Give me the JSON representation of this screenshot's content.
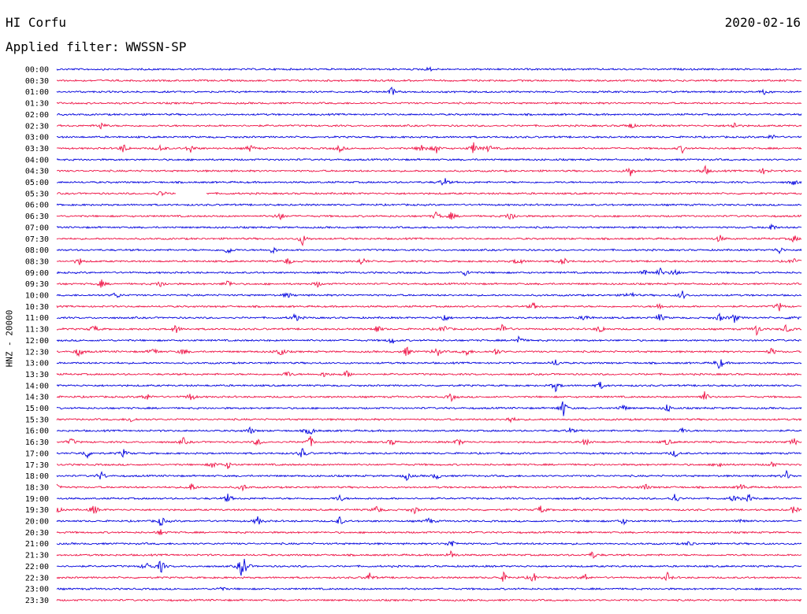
{
  "header": {
    "station": "HI Corfu",
    "date": "2020-02-16",
    "filter_label": "Applied filter:",
    "filter_value": "WWSSN-SP"
  },
  "axis": {
    "ylabel": "HNZ - 20000"
  },
  "colors": {
    "even_row": "#0000dd",
    "odd_row": "#ee1144",
    "label": "#000000"
  },
  "chart_data": {
    "type": "line",
    "title": "",
    "xlabel": "",
    "ylabel": "HNZ - 20000",
    "row_interval_minutes": 30,
    "row_labels": [
      "00:00",
      "00:30",
      "01:00",
      "01:30",
      "02:00",
      "02:30",
      "03:00",
      "03:30",
      "04:00",
      "04:30",
      "05:00",
      "05:30",
      "06:00",
      "06:30",
      "07:00",
      "07:30",
      "08:00",
      "08:30",
      "09:00",
      "09:30",
      "10:00",
      "10:30",
      "11:00",
      "11:30",
      "12:00",
      "12:30",
      "13:00",
      "13:30",
      "14:00",
      "14:30",
      "15:00",
      "15:30",
      "16:00",
      "16:30",
      "17:00",
      "17:30",
      "18:00",
      "18:30",
      "19:00",
      "19:30",
      "20:00",
      "20:30",
      "21:00",
      "21:30",
      "22:00",
      "22:30",
      "23:00",
      "23:30"
    ],
    "row_colors": [
      "blue",
      "red"
    ],
    "events": [
      {
        "row": "00:00",
        "t": 0.5,
        "amp": 3
      },
      {
        "row": "01:00",
        "t": 0.45,
        "amp": 6
      },
      {
        "row": "01:00",
        "t": 0.95,
        "amp": 3
      },
      {
        "row": "02:30",
        "t": 0.06,
        "amp": 5
      },
      {
        "row": "02:30",
        "t": 0.77,
        "amp": 5
      },
      {
        "row": "02:30",
        "t": 0.91,
        "amp": 5
      },
      {
        "row": "03:00",
        "t": 0.96,
        "amp": 4
      },
      {
        "row": "03:30",
        "t": 0.09,
        "amp": 6
      },
      {
        "row": "03:30",
        "t": 0.14,
        "amp": 5
      },
      {
        "row": "03:30",
        "t": 0.18,
        "amp": 6
      },
      {
        "row": "03:30",
        "t": 0.26,
        "amp": 5
      },
      {
        "row": "03:30",
        "t": 0.38,
        "amp": 5
      },
      {
        "row": "03:30",
        "t": 0.49,
        "amp": 7
      },
      {
        "row": "03:30",
        "t": 0.51,
        "amp": 6
      },
      {
        "row": "03:30",
        "t": 0.56,
        "amp": 8
      },
      {
        "row": "03:30",
        "t": 0.58,
        "amp": 5
      },
      {
        "row": "03:30",
        "t": 0.84,
        "amp": 5
      },
      {
        "row": "04:30",
        "t": 0.77,
        "amp": 8
      },
      {
        "row": "04:30",
        "t": 0.87,
        "amp": 7
      },
      {
        "row": "04:30",
        "t": 0.95,
        "amp": 5
      },
      {
        "row": "05:00",
        "t": 0.52,
        "amp": 7
      },
      {
        "row": "05:00",
        "t": 0.99,
        "amp": 4
      },
      {
        "row": "05:30",
        "t": 0.14,
        "amp": 4
      },
      {
        "row": "06:30",
        "t": 0.3,
        "amp": 6
      },
      {
        "row": "06:30",
        "t": 0.51,
        "amp": 6
      },
      {
        "row": "06:30",
        "t": 0.53,
        "amp": 5
      },
      {
        "row": "06:30",
        "t": 0.61,
        "amp": 8
      },
      {
        "row": "07:00",
        "t": 0.96,
        "amp": 5
      },
      {
        "row": "07:30",
        "t": 0.33,
        "amp": 8
      },
      {
        "row": "07:30",
        "t": 0.89,
        "amp": 5
      },
      {
        "row": "07:30",
        "t": 0.99,
        "amp": 5
      },
      {
        "row": "08:00",
        "t": 0.23,
        "amp": 6
      },
      {
        "row": "08:00",
        "t": 0.29,
        "amp": 5
      },
      {
        "row": "08:00",
        "t": 0.97,
        "amp": 5
      },
      {
        "row": "08:30",
        "t": 0.03,
        "amp": 5
      },
      {
        "row": "08:30",
        "t": 0.31,
        "amp": 5
      },
      {
        "row": "08:30",
        "t": 0.41,
        "amp": 6
      },
      {
        "row": "08:30",
        "t": 0.62,
        "amp": 6
      },
      {
        "row": "08:30",
        "t": 0.68,
        "amp": 6
      },
      {
        "row": "08:30",
        "t": 0.99,
        "amp": 5
      },
      {
        "row": "09:00",
        "t": 0.55,
        "amp": 5
      },
      {
        "row": "09:00",
        "t": 0.79,
        "amp": 6
      },
      {
        "row": "09:00",
        "t": 0.81,
        "amp": 6
      },
      {
        "row": "09:00",
        "t": 0.83,
        "amp": 6
      },
      {
        "row": "09:30",
        "t": 0.06,
        "amp": 5
      },
      {
        "row": "09:30",
        "t": 0.14,
        "amp": 5
      },
      {
        "row": "09:30",
        "t": 0.23,
        "amp": 6
      },
      {
        "row": "09:30",
        "t": 0.35,
        "amp": 4
      },
      {
        "row": "10:00",
        "t": 0.08,
        "amp": 5
      },
      {
        "row": "10:00",
        "t": 0.31,
        "amp": 4
      },
      {
        "row": "10:00",
        "t": 0.77,
        "amp": 6
      },
      {
        "row": "10:00",
        "t": 0.84,
        "amp": 6
      },
      {
        "row": "10:30",
        "t": 0.64,
        "amp": 5
      },
      {
        "row": "10:30",
        "t": 0.81,
        "amp": 5
      },
      {
        "row": "10:30",
        "t": 0.97,
        "amp": 6
      },
      {
        "row": "11:00",
        "t": 0.32,
        "amp": 6
      },
      {
        "row": "11:00",
        "t": 0.52,
        "amp": 6
      },
      {
        "row": "11:00",
        "t": 0.71,
        "amp": 5
      },
      {
        "row": "11:00",
        "t": 0.81,
        "amp": 6
      },
      {
        "row": "11:00",
        "t": 0.89,
        "amp": 5
      },
      {
        "row": "11:00",
        "t": 0.91,
        "amp": 6
      },
      {
        "row": "11:00",
        "t": 0.99,
        "amp": 5
      },
      {
        "row": "11:30",
        "t": 0.05,
        "amp": 6
      },
      {
        "row": "11:30",
        "t": 0.16,
        "amp": 6
      },
      {
        "row": "11:30",
        "t": 0.43,
        "amp": 6
      },
      {
        "row": "11:30",
        "t": 0.52,
        "amp": 7
      },
      {
        "row": "11:30",
        "t": 0.6,
        "amp": 9
      },
      {
        "row": "11:30",
        "t": 0.73,
        "amp": 6
      },
      {
        "row": "11:30",
        "t": 0.94,
        "amp": 8
      },
      {
        "row": "11:30",
        "t": 0.98,
        "amp": 6
      },
      {
        "row": "12:00",
        "t": 0.45,
        "amp": 5
      },
      {
        "row": "12:00",
        "t": 0.62,
        "amp": 6
      },
      {
        "row": "12:30",
        "t": 0.03,
        "amp": 7
      },
      {
        "row": "12:30",
        "t": 0.13,
        "amp": 6
      },
      {
        "row": "12:30",
        "t": 0.17,
        "amp": 5
      },
      {
        "row": "12:30",
        "t": 0.3,
        "amp": 8
      },
      {
        "row": "12:30",
        "t": 0.47,
        "amp": 7
      },
      {
        "row": "12:30",
        "t": 0.51,
        "amp": 8
      },
      {
        "row": "12:30",
        "t": 0.55,
        "amp": 6
      },
      {
        "row": "12:30",
        "t": 0.59,
        "amp": 5
      },
      {
        "row": "12:30",
        "t": 0.96,
        "amp": 5
      },
      {
        "row": "13:00",
        "t": 0.67,
        "amp": 5
      },
      {
        "row": "13:00",
        "t": 0.89,
        "amp": 9
      },
      {
        "row": "13:30",
        "t": 0.31,
        "amp": 5
      },
      {
        "row": "13:30",
        "t": 0.36,
        "amp": 4
      },
      {
        "row": "13:30",
        "t": 0.39,
        "amp": 5
      },
      {
        "row": "14:00",
        "t": 0.67,
        "amp": 7
      },
      {
        "row": "14:00",
        "t": 0.73,
        "amp": 5
      },
      {
        "row": "14:30",
        "t": 0.12,
        "amp": 6
      },
      {
        "row": "14:30",
        "t": 0.18,
        "amp": 6
      },
      {
        "row": "14:30",
        "t": 0.53,
        "amp": 5
      },
      {
        "row": "14:30",
        "t": 0.87,
        "amp": 7
      },
      {
        "row": "15:00",
        "t": 0.68,
        "amp": 12
      },
      {
        "row": "15:00",
        "t": 0.76,
        "amp": 5
      },
      {
        "row": "15:00",
        "t": 0.82,
        "amp": 6
      },
      {
        "row": "15:30",
        "t": 0.1,
        "amp": 4
      },
      {
        "row": "15:30",
        "t": 0.61,
        "amp": 5
      },
      {
        "row": "16:00",
        "t": 0.26,
        "amp": 5
      },
      {
        "row": "16:00",
        "t": 0.34,
        "amp": 7
      },
      {
        "row": "16:00",
        "t": 0.69,
        "amp": 4
      },
      {
        "row": "16:00",
        "t": 0.84,
        "amp": 4
      },
      {
        "row": "16:30",
        "t": 0.02,
        "amp": 5
      },
      {
        "row": "16:30",
        "t": 0.17,
        "amp": 5
      },
      {
        "row": "16:30",
        "t": 0.27,
        "amp": 5
      },
      {
        "row": "16:30",
        "t": 0.34,
        "amp": 8
      },
      {
        "row": "16:30",
        "t": 0.45,
        "amp": 5
      },
      {
        "row": "16:30",
        "t": 0.54,
        "amp": 5
      },
      {
        "row": "16:30",
        "t": 0.71,
        "amp": 5
      },
      {
        "row": "16:30",
        "t": 0.82,
        "amp": 5
      },
      {
        "row": "16:30",
        "t": 0.99,
        "amp": 5
      },
      {
        "row": "17:00",
        "t": 0.04,
        "amp": 7
      },
      {
        "row": "17:00",
        "t": 0.09,
        "amp": 5
      },
      {
        "row": "17:00",
        "t": 0.33,
        "amp": 7
      },
      {
        "row": "17:00",
        "t": 0.83,
        "amp": 5
      },
      {
        "row": "17:30",
        "t": 0.21,
        "amp": 5
      },
      {
        "row": "17:30",
        "t": 0.23,
        "amp": 5
      },
      {
        "row": "17:30",
        "t": 0.89,
        "amp": 5
      },
      {
        "row": "17:30",
        "t": 0.96,
        "amp": 4
      },
      {
        "row": "18:00",
        "t": 0.06,
        "amp": 6
      },
      {
        "row": "18:00",
        "t": 0.47,
        "amp": 5
      },
      {
        "row": "18:00",
        "t": 0.51,
        "amp": 5
      },
      {
        "row": "18:00",
        "t": 0.98,
        "amp": 6
      },
      {
        "row": "18:30",
        "t": 0.0,
        "amp": 5
      },
      {
        "row": "18:30",
        "t": 0.18,
        "amp": 7
      },
      {
        "row": "18:30",
        "t": 0.25,
        "amp": 5
      },
      {
        "row": "18:30",
        "t": 0.79,
        "amp": 5
      },
      {
        "row": "18:30",
        "t": 0.92,
        "amp": 5
      },
      {
        "row": "19:00",
        "t": 0.23,
        "amp": 6
      },
      {
        "row": "19:00",
        "t": 0.38,
        "amp": 5
      },
      {
        "row": "19:00",
        "t": 0.83,
        "amp": 7
      },
      {
        "row": "19:00",
        "t": 0.91,
        "amp": 6
      },
      {
        "row": "19:00",
        "t": 0.93,
        "amp": 5
      },
      {
        "row": "19:30",
        "t": 0.0,
        "amp": 5
      },
      {
        "row": "19:30",
        "t": 0.05,
        "amp": 7
      },
      {
        "row": "19:30",
        "t": 0.43,
        "amp": 6
      },
      {
        "row": "19:30",
        "t": 0.48,
        "amp": 5
      },
      {
        "row": "19:30",
        "t": 0.65,
        "amp": 6
      },
      {
        "row": "19:30",
        "t": 0.99,
        "amp": 6
      },
      {
        "row": "20:00",
        "t": 0.14,
        "amp": 7
      },
      {
        "row": "20:00",
        "t": 0.27,
        "amp": 6
      },
      {
        "row": "20:00",
        "t": 0.38,
        "amp": 6
      },
      {
        "row": "20:00",
        "t": 0.5,
        "amp": 5
      },
      {
        "row": "20:00",
        "t": 0.76,
        "amp": 5
      },
      {
        "row": "20:00",
        "t": 0.92,
        "amp": 5
      },
      {
        "row": "20:30",
        "t": 0.14,
        "amp": 4
      },
      {
        "row": "21:00",
        "t": 0.53,
        "amp": 7
      },
      {
        "row": "21:00",
        "t": 0.85,
        "amp": 4
      },
      {
        "row": "21:30",
        "t": 0.53,
        "amp": 6
      },
      {
        "row": "21:30",
        "t": 0.72,
        "amp": 5
      },
      {
        "row": "22:00",
        "t": 0.12,
        "amp": 6
      },
      {
        "row": "22:00",
        "t": 0.14,
        "amp": 9
      },
      {
        "row": "22:00",
        "t": 0.25,
        "amp": 22
      },
      {
        "row": "22:30",
        "t": 0.42,
        "amp": 6
      },
      {
        "row": "22:30",
        "t": 0.6,
        "amp": 6
      },
      {
        "row": "22:30",
        "t": 0.64,
        "amp": 7
      },
      {
        "row": "22:30",
        "t": 0.71,
        "amp": 5
      },
      {
        "row": "22:30",
        "t": 0.82,
        "amp": 6
      },
      {
        "row": "23:00",
        "t": 0.22,
        "amp": 3
      }
    ],
    "gaps": [
      {
        "row": "05:30",
        "start": 0.16,
        "end": 0.2
      }
    ],
    "grid": false
  }
}
